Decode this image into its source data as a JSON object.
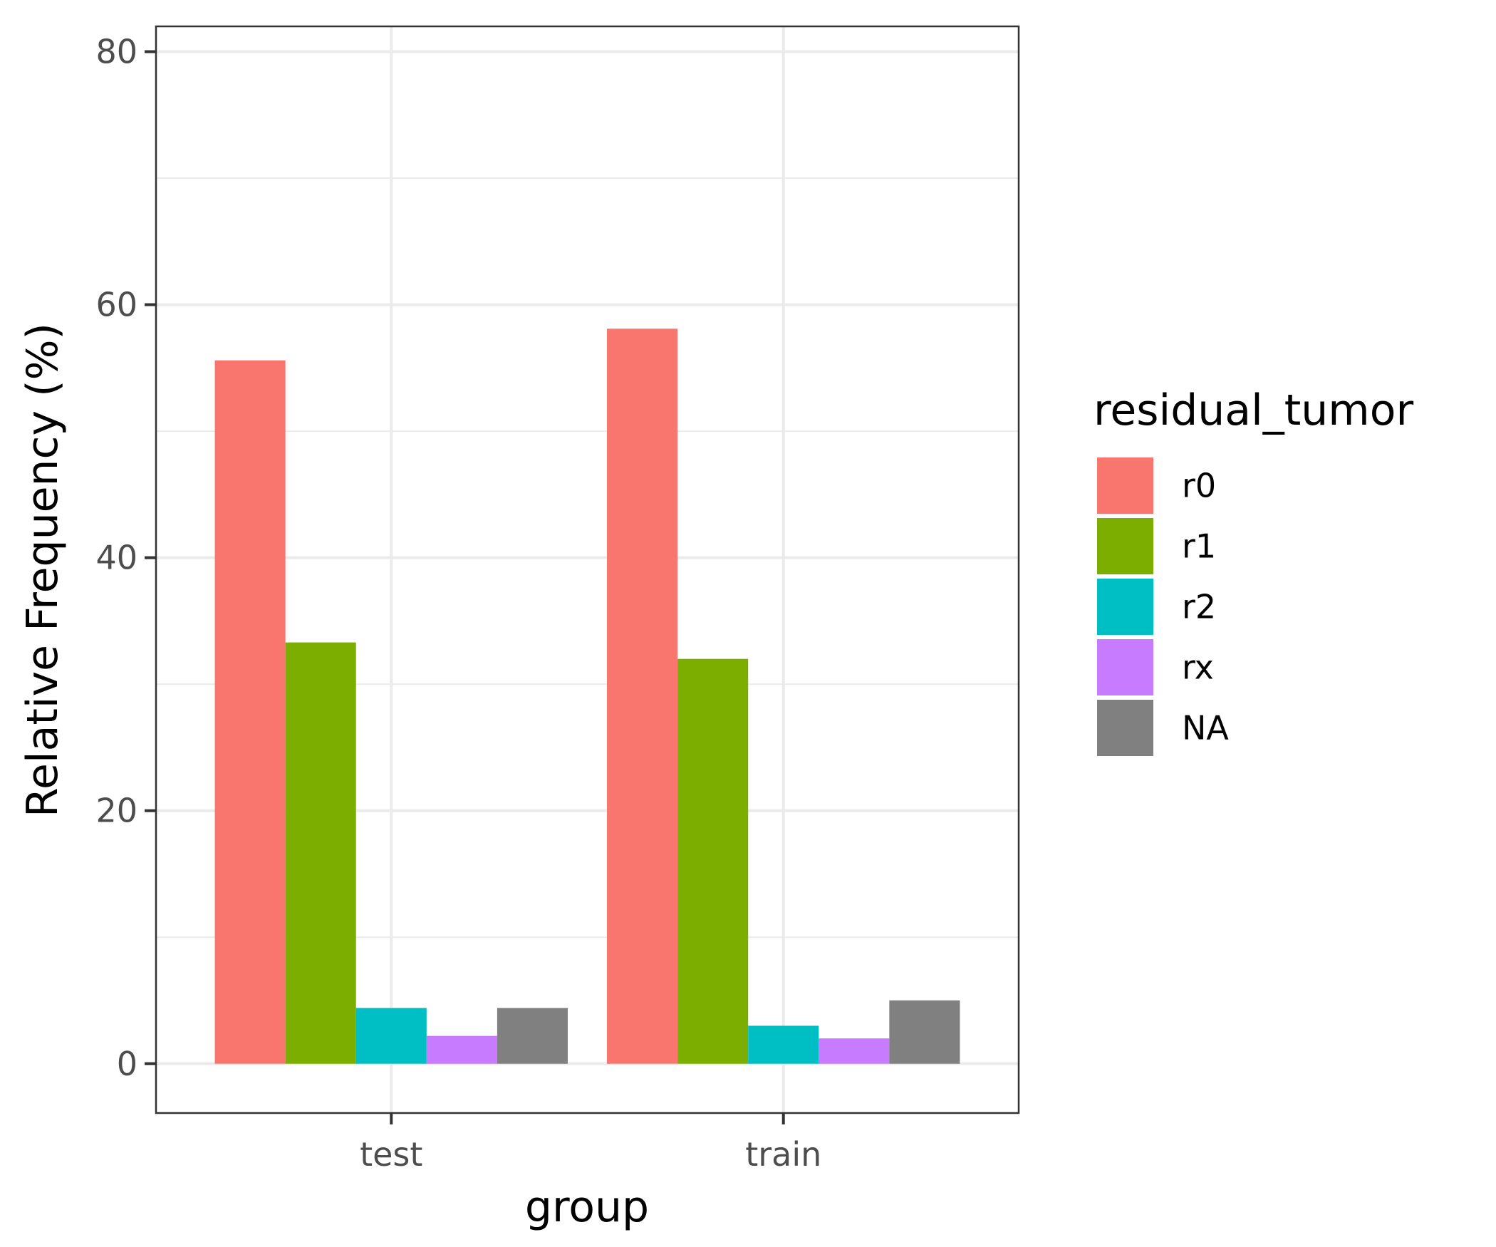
{
  "chart_data": {
    "type": "bar",
    "categories": [
      "test",
      "train"
    ],
    "series": [
      {
        "name": "r0",
        "values": [
          55.6,
          58.1
        ]
      },
      {
        "name": "r1",
        "values": [
          33.3,
          32.0
        ]
      },
      {
        "name": "r2",
        "values": [
          4.4,
          3.0
        ]
      },
      {
        "name": "rx",
        "values": [
          2.2,
          2.0
        ]
      },
      {
        "name": "NA",
        "values": [
          4.4,
          5.0
        ]
      }
    ],
    "colors": [
      "#F8766D",
      "#7CAE00",
      "#00BFC4",
      "#C77CFF",
      "#808080"
    ],
    "xlabel": "group",
    "ylabel": "Relative Frequency (%)",
    "ylim": [
      -3.9,
      82.0
    ],
    "yticks": [
      0,
      20,
      40,
      60,
      80
    ],
    "grid": true,
    "legend": {
      "title": "residual_tumor",
      "position": "right"
    }
  }
}
